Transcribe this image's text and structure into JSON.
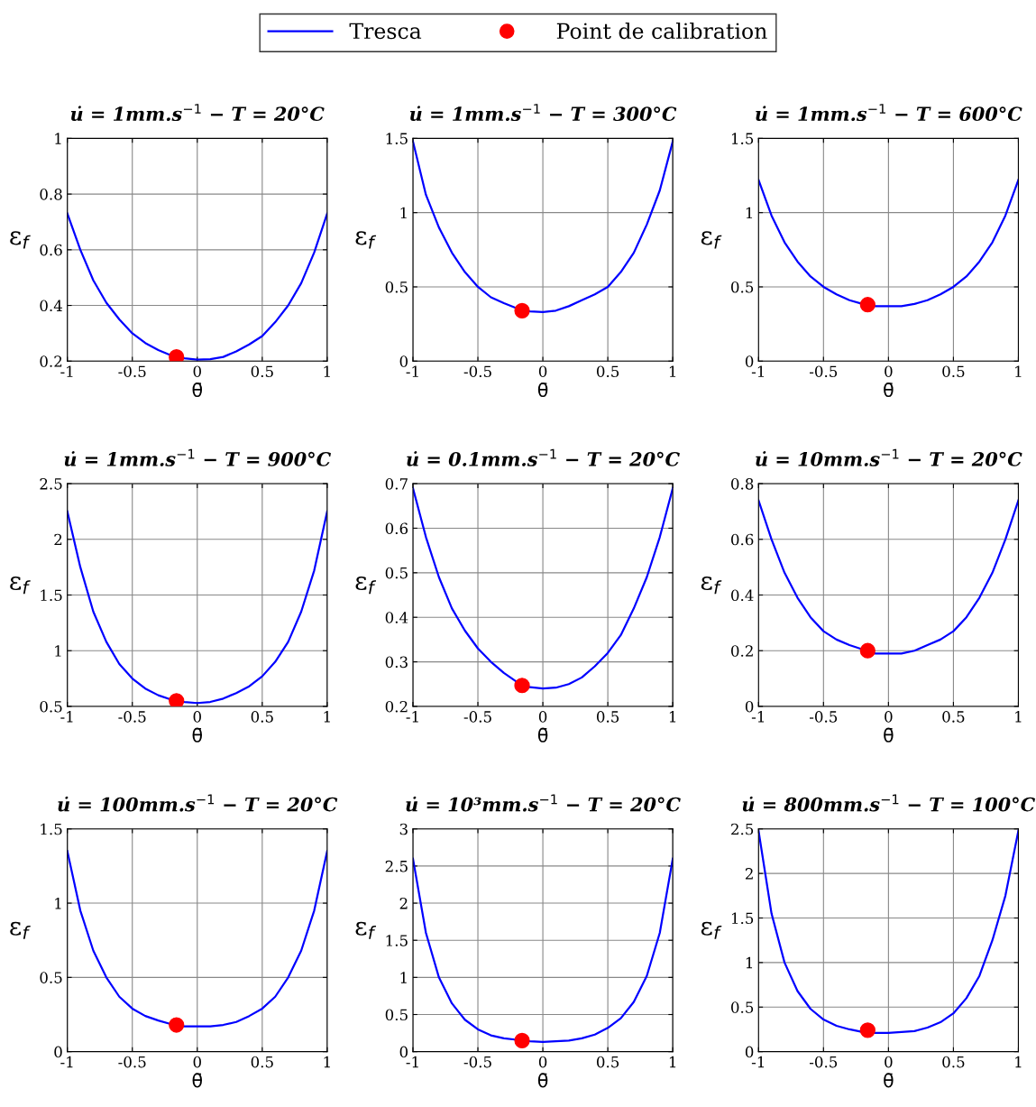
{
  "chart_data": [
    {
      "type": "line",
      "title": "u̇ = 1mm.s$^{−1}$ − T = 20°C",
      "xlabel": "θ̄",
      "ylabel": "ε$_{f}$",
      "xlim": [
        -1,
        1
      ],
      "xticks": [
        -1,
        -0.5,
        0,
        0.5,
        1
      ],
      "ylim": [
        0.2,
        1
      ],
      "yticks": [
        0.2,
        0.4,
        0.6,
        0.8,
        1
      ],
      "grid": true,
      "legend": "top",
      "series": [
        {
          "name": "Tresca",
          "type": "line",
          "color": "#0000ff",
          "marker": "none",
          "x": [
            -1,
            -0.9,
            -0.8,
            -0.7,
            -0.6,
            -0.5,
            -0.4,
            -0.3,
            -0.2,
            -0.1,
            0,
            0.1,
            0.2,
            0.3,
            0.4,
            0.5,
            0.6,
            0.7,
            0.8,
            0.9,
            1
          ],
          "values": [
            0.73,
            0.6,
            0.49,
            0.41,
            0.35,
            0.3,
            0.265,
            0.24,
            0.22,
            0.21,
            0.205,
            0.207,
            0.215,
            0.235,
            0.26,
            0.29,
            0.34,
            0.4,
            0.48,
            0.59,
            0.73
          ]
        },
        {
          "name": "Point de calibration",
          "type": "scatter",
          "color": "#ff0000",
          "marker": "circle",
          "x": [
            -0.16
          ],
          "values": [
            0.215
          ]
        }
      ]
    },
    {
      "type": "line",
      "title": "u̇ = 1mm.s$^{−1}$ − T = 300°C",
      "xlabel": "θ̄",
      "ylabel": "ε$_{f}$",
      "xlim": [
        -1,
        1
      ],
      "xticks": [
        -1,
        -0.5,
        0,
        0.5,
        1
      ],
      "ylim": [
        0,
        1.5
      ],
      "yticks": [
        0,
        0.5,
        1,
        1.5
      ],
      "grid": true,
      "series": [
        {
          "type": "line",
          "color": "#0000ff",
          "marker": "none",
          "x": [
            -1,
            -0.9,
            -0.8,
            -0.7,
            -0.6,
            -0.5,
            -0.4,
            -0.3,
            -0.2,
            -0.1,
            0,
            0.1,
            0.2,
            0.3,
            0.4,
            0.5,
            0.6,
            0.7,
            0.8,
            0.9,
            1
          ],
          "values": [
            1.48,
            1.12,
            0.9,
            0.73,
            0.6,
            0.5,
            0.43,
            0.39,
            0.355,
            0.335,
            0.33,
            0.34,
            0.37,
            0.41,
            0.45,
            0.5,
            0.6,
            0.73,
            0.92,
            1.15,
            1.48
          ]
        },
        {
          "type": "scatter",
          "color": "#ff0000",
          "marker": "circle",
          "x": [
            -0.16
          ],
          "values": [
            0.34
          ]
        }
      ]
    },
    {
      "type": "line",
      "title": "u̇ = 1mm.s$^{−1}$ − T = 600°C",
      "xlabel": "θ̄",
      "ylabel": "ε$_{f}$",
      "xlim": [
        -1,
        1
      ],
      "xticks": [
        -1,
        -0.5,
        0,
        0.5,
        1
      ],
      "ylim": [
        0,
        1.5
      ],
      "yticks": [
        0,
        0.5,
        1,
        1.5
      ],
      "grid": true,
      "series": [
        {
          "type": "line",
          "color": "#0000ff",
          "marker": "none",
          "x": [
            -1,
            -0.9,
            -0.8,
            -0.7,
            -0.6,
            -0.5,
            -0.4,
            -0.3,
            -0.2,
            -0.1,
            0,
            0.1,
            0.2,
            0.3,
            0.4,
            0.5,
            0.6,
            0.7,
            0.8,
            0.9,
            1
          ],
          "values": [
            1.22,
            0.98,
            0.8,
            0.67,
            0.57,
            0.5,
            0.45,
            0.41,
            0.385,
            0.37,
            0.37,
            0.37,
            0.385,
            0.41,
            0.45,
            0.5,
            0.57,
            0.67,
            0.8,
            0.98,
            1.22
          ]
        },
        {
          "type": "scatter",
          "color": "#ff0000",
          "marker": "circle",
          "x": [
            -0.16
          ],
          "values": [
            0.38
          ]
        }
      ]
    },
    {
      "type": "line",
      "title": "u̇ = 1mm.s$^{−1}$ − T = 900°C",
      "xlabel": "θ̄",
      "ylabel": "ε$_{f}$",
      "xlim": [
        -1,
        1
      ],
      "xticks": [
        -1,
        -0.5,
        0,
        0.5,
        1
      ],
      "ylim": [
        0.5,
        2.5
      ],
      "yticks": [
        0.5,
        1,
        1.5,
        2,
        2.5
      ],
      "grid": true,
      "series": [
        {
          "type": "line",
          "color": "#0000ff",
          "marker": "none",
          "x": [
            -1,
            -0.9,
            -0.8,
            -0.7,
            -0.6,
            -0.5,
            -0.4,
            -0.3,
            -0.2,
            -0.1,
            0,
            0.1,
            0.2,
            0.3,
            0.4,
            0.5,
            0.6,
            0.7,
            0.8,
            0.9,
            1
          ],
          "values": [
            2.25,
            1.75,
            1.35,
            1.08,
            0.88,
            0.75,
            0.66,
            0.6,
            0.56,
            0.54,
            0.53,
            0.54,
            0.57,
            0.62,
            0.68,
            0.77,
            0.9,
            1.08,
            1.35,
            1.72,
            2.25
          ]
        },
        {
          "type": "scatter",
          "color": "#ff0000",
          "marker": "circle",
          "x": [
            -0.16
          ],
          "values": [
            0.55
          ]
        }
      ]
    },
    {
      "type": "line",
      "title": "u̇ = 0.1mm.s$^{−1}$ − T = 20°C",
      "xlabel": "θ̄",
      "ylabel": "ε$_{f}$",
      "xlim": [
        -1,
        1
      ],
      "xticks": [
        -1,
        -0.5,
        0,
        0.5,
        1
      ],
      "ylim": [
        0.2,
        0.7
      ],
      "yticks": [
        0.2,
        0.3,
        0.4,
        0.5,
        0.6,
        0.7
      ],
      "grid": true,
      "series": [
        {
          "type": "line",
          "color": "#0000ff",
          "marker": "none",
          "x": [
            -1,
            -0.9,
            -0.8,
            -0.7,
            -0.6,
            -0.5,
            -0.4,
            -0.3,
            -0.2,
            -0.1,
            0,
            0.1,
            0.2,
            0.3,
            0.4,
            0.5,
            0.6,
            0.7,
            0.8,
            0.9,
            1
          ],
          "values": [
            0.69,
            0.58,
            0.49,
            0.42,
            0.37,
            0.33,
            0.3,
            0.275,
            0.255,
            0.243,
            0.24,
            0.242,
            0.25,
            0.265,
            0.29,
            0.32,
            0.36,
            0.42,
            0.49,
            0.58,
            0.69
          ]
        },
        {
          "type": "scatter",
          "color": "#ff0000",
          "marker": "circle",
          "x": [
            -0.16
          ],
          "values": [
            0.247
          ]
        }
      ]
    },
    {
      "type": "line",
      "title": "u̇ = 10mm.s$^{−1}$ − T = 20°C",
      "xlabel": "θ̄",
      "ylabel": "ε$_{f}$",
      "xlim": [
        -1,
        1
      ],
      "xticks": [
        -1,
        -0.5,
        0,
        0.5,
        1
      ],
      "ylim": [
        0,
        0.8
      ],
      "yticks": [
        0,
        0.2,
        0.4,
        0.6,
        0.8
      ],
      "grid": true,
      "series": [
        {
          "type": "line",
          "color": "#0000ff",
          "marker": "none",
          "x": [
            -1,
            -0.9,
            -0.8,
            -0.7,
            -0.6,
            -0.5,
            -0.4,
            -0.3,
            -0.2,
            -0.1,
            0,
            0.1,
            0.2,
            0.3,
            0.4,
            0.5,
            0.6,
            0.7,
            0.8,
            0.9,
            1
          ],
          "values": [
            0.74,
            0.6,
            0.48,
            0.39,
            0.32,
            0.27,
            0.24,
            0.22,
            0.205,
            0.19,
            0.19,
            0.19,
            0.2,
            0.22,
            0.24,
            0.27,
            0.32,
            0.39,
            0.48,
            0.6,
            0.74
          ]
        },
        {
          "type": "scatter",
          "color": "#ff0000",
          "marker": "circle",
          "x": [
            -0.16
          ],
          "values": [
            0.2
          ]
        }
      ]
    },
    {
      "type": "line",
      "title": "u̇ = 100mm.s$^{−1}$ − T = 20°C",
      "xlabel": "θ̄",
      "ylabel": "ε$_{f}$",
      "xlim": [
        -1,
        1
      ],
      "xticks": [
        -1,
        -0.5,
        0,
        0.5,
        1
      ],
      "ylim": [
        0,
        1.5
      ],
      "yticks": [
        0,
        0.5,
        1,
        1.5
      ],
      "grid": true,
      "series": [
        {
          "type": "line",
          "color": "#0000ff",
          "marker": "none",
          "x": [
            -1,
            -0.9,
            -0.8,
            -0.7,
            -0.6,
            -0.5,
            -0.4,
            -0.3,
            -0.2,
            -0.1,
            0,
            0.1,
            0.2,
            0.3,
            0.4,
            0.5,
            0.6,
            0.7,
            0.8,
            0.9,
            1
          ],
          "values": [
            1.35,
            0.95,
            0.68,
            0.5,
            0.37,
            0.29,
            0.24,
            0.21,
            0.185,
            0.17,
            0.17,
            0.17,
            0.18,
            0.2,
            0.24,
            0.29,
            0.37,
            0.5,
            0.68,
            0.95,
            1.35
          ]
        },
        {
          "type": "scatter",
          "color": "#ff0000",
          "marker": "circle",
          "x": [
            -0.16
          ],
          "values": [
            0.18
          ]
        }
      ]
    },
    {
      "type": "line",
      "title": "u̇ = 10³mm.s$^{−1}$ − T = 20°C",
      "xlabel": "θ̄",
      "ylabel": "ε$_{f}$",
      "xlim": [
        -1,
        1
      ],
      "xticks": [
        -1,
        -0.5,
        0,
        0.5,
        1
      ],
      "ylim": [
        0,
        3
      ],
      "yticks": [
        0,
        0.5,
        1,
        1.5,
        2,
        2.5,
        3
      ],
      "grid": true,
      "series": [
        {
          "type": "line",
          "color": "#0000ff",
          "marker": "none",
          "x": [
            -1,
            -0.9,
            -0.8,
            -0.7,
            -0.6,
            -0.5,
            -0.4,
            -0.3,
            -0.2,
            -0.1,
            0,
            0.1,
            0.2,
            0.3,
            0.4,
            0.5,
            0.6,
            0.7,
            0.8,
            0.9,
            1
          ],
          "values": [
            2.6,
            1.6,
            1.0,
            0.65,
            0.43,
            0.3,
            0.22,
            0.18,
            0.16,
            0.14,
            0.13,
            0.14,
            0.15,
            0.18,
            0.23,
            0.32,
            0.45,
            0.67,
            1.02,
            1.6,
            2.6
          ]
        },
        {
          "type": "scatter",
          "color": "#ff0000",
          "marker": "circle",
          "x": [
            -0.16
          ],
          "values": [
            0.15
          ]
        }
      ]
    },
    {
      "type": "line",
      "title": "u̇ = 800mm.s$^{−1}$ − T = 100°C",
      "xlabel": "θ̄",
      "ylabel": "ε$_{f}$",
      "xlim": [
        -1,
        1
      ],
      "xticks": [
        -1,
        -0.5,
        0,
        0.5,
        1
      ],
      "ylim": [
        0,
        2.5
      ],
      "yticks": [
        0,
        0.5,
        1,
        1.5,
        2,
        2.5
      ],
      "grid": true,
      "series": [
        {
          "type": "line",
          "color": "#0000ff",
          "marker": "none",
          "x": [
            -1,
            -0.9,
            -0.8,
            -0.7,
            -0.6,
            -0.5,
            -0.4,
            -0.3,
            -0.2,
            -0.1,
            0,
            0.1,
            0.2,
            0.3,
            0.4,
            0.5,
            0.6,
            0.7,
            0.8,
            0.9,
            1
          ],
          "values": [
            2.48,
            1.55,
            1.0,
            0.68,
            0.48,
            0.36,
            0.29,
            0.25,
            0.22,
            0.21,
            0.21,
            0.22,
            0.23,
            0.27,
            0.33,
            0.43,
            0.6,
            0.85,
            1.25,
            1.75,
            2.48
          ]
        },
        {
          "type": "scatter",
          "color": "#ff0000",
          "marker": "circle",
          "x": [
            -0.16
          ],
          "values": [
            0.24
          ]
        }
      ]
    }
  ]
}
